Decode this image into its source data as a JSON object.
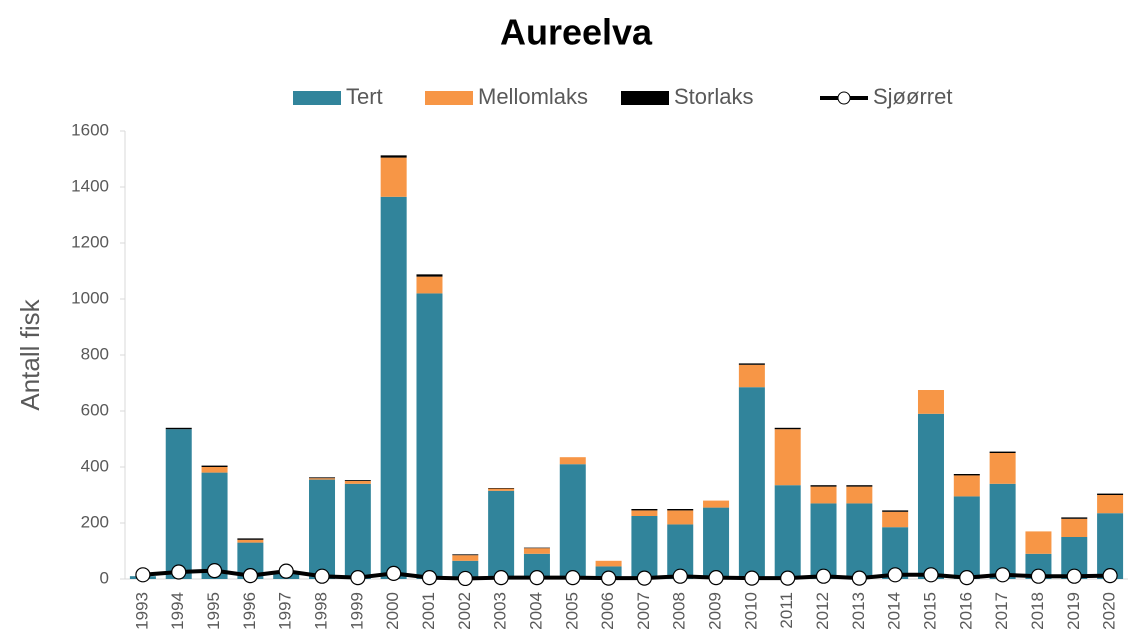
{
  "chart_data": {
    "type": "bar",
    "stacked": true,
    "title": "Aureelva",
    "y_label": "Antall fisk",
    "categories": [
      "1993",
      "1994",
      "1995",
      "1996",
      "1997",
      "1998",
      "1999",
      "2000",
      "2001",
      "2002",
      "2003",
      "2004",
      "2005",
      "2006",
      "2007",
      "2008",
      "2009",
      "2010",
      "2011",
      "2012",
      "2013",
      "2014",
      "2015",
      "2016",
      "2017",
      "2018",
      "2019",
      "2020"
    ],
    "series": [
      {
        "name": "Tert",
        "color": "#31849b",
        "values": [
          10,
          535,
          380,
          130,
          20,
          355,
          340,
          1365,
          1020,
          65,
          315,
          90,
          410,
          45,
          225,
          195,
          255,
          685,
          335,
          270,
          270,
          185,
          590,
          295,
          340,
          90,
          150,
          235
        ]
      },
      {
        "name": "Mellomlaks",
        "color": "#f79646",
        "values": [
          0,
          0,
          20,
          10,
          0,
          5,
          10,
          140,
          60,
          20,
          8,
          20,
          25,
          20,
          20,
          50,
          25,
          80,
          200,
          60,
          60,
          55,
          85,
          75,
          110,
          80,
          65,
          65
        ]
      },
      {
        "name": "Storlaks",
        "color": "#000000",
        "values": [
          0,
          5,
          5,
          5,
          0,
          3,
          3,
          8,
          8,
          3,
          2,
          2,
          0,
          0,
          5,
          5,
          0,
          5,
          5,
          5,
          5,
          5,
          0,
          5,
          5,
          0,
          5,
          5
        ]
      },
      {
        "name": "Sjøørret",
        "type": "line",
        "color": "#000000",
        "values": [
          15,
          25,
          30,
          12,
          28,
          10,
          5,
          20,
          5,
          2,
          5,
          5,
          5,
          3,
          3,
          10,
          5,
          3,
          3,
          10,
          3,
          15,
          15,
          5,
          15,
          10,
          10,
          12
        ]
      }
    ],
    "ylim": [
      0,
      1600
    ],
    "yticks": [
      0,
      200,
      400,
      600,
      800,
      1000,
      1200,
      1400,
      1600
    ],
    "grid": false,
    "legend": "top"
  }
}
